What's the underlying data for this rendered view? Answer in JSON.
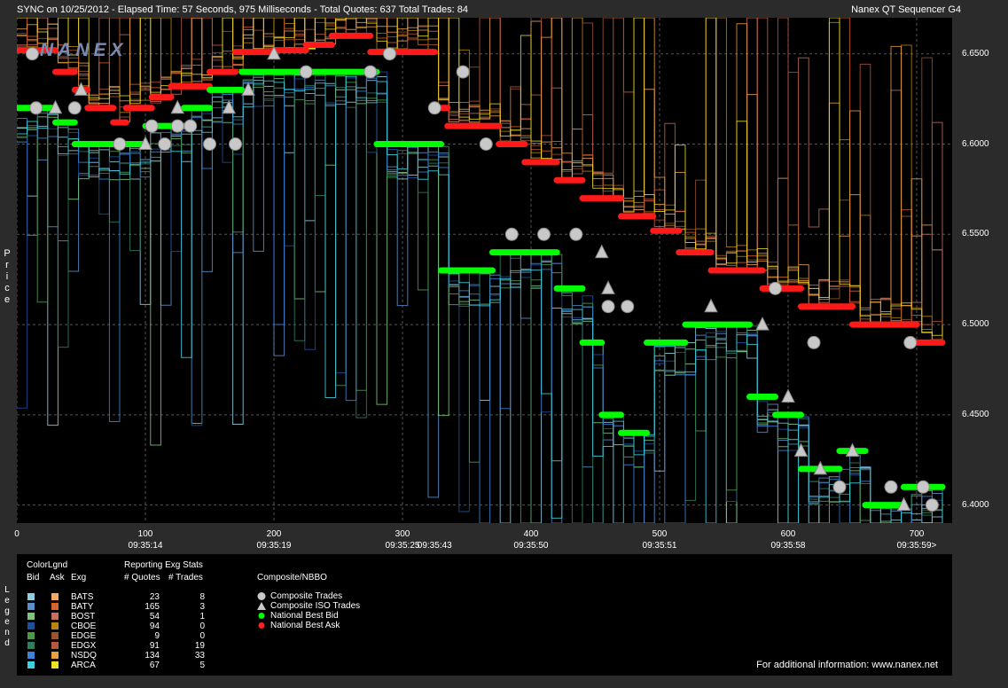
{
  "header": {
    "left": "SYNC on 10/25/2012  -  Elapsed Time: 57 Seconds, 975 Milliseconds  -  Total Quotes: 637  Total Trades: 84",
    "right": "Nanex QT Sequencer G4"
  },
  "logo": "NANEX",
  "price_axis_label": "Price",
  "legend_side_label": "Legend",
  "legend": {
    "colorlgnd": "ColorLgnd",
    "bid": "Bid",
    "ask": "Ask",
    "exg": "Exg",
    "stats_title": "Reporting Exg Stats",
    "quotes_header": "# Quotes",
    "trades_header": "# Trades",
    "composite_title": "Composite/NBBO",
    "exchanges": [
      {
        "name": "BATS",
        "quotes": "23",
        "trades": "8",
        "bid_color": "#8ecde0",
        "ask_color": "#f4a860"
      },
      {
        "name": "BATY",
        "quotes": "165",
        "trades": "3",
        "bid_color": "#5b8fc9",
        "ask_color": "#d9622a"
      },
      {
        "name": "BOST",
        "quotes": "54",
        "trades": "1",
        "bid_color": "#7fc47a",
        "ask_color": "#c87060"
      },
      {
        "name": "CBOE",
        "quotes": "94",
        "trades": "0",
        "bid_color": "#1d4f9c",
        "ask_color": "#b8860b"
      },
      {
        "name": "EDGE",
        "quotes": "9",
        "trades": "0",
        "bid_color": "#4c9a48",
        "ask_color": "#a0522d"
      },
      {
        "name": "EDGX",
        "quotes": "91",
        "trades": "19",
        "bid_color": "#2e7d5f",
        "ask_color": "#b8573a"
      },
      {
        "name": "NSDQ",
        "quotes": "134",
        "trades": "33",
        "bid_color": "#3a83d6",
        "ask_color": "#e8a040"
      },
      {
        "name": "ARCA",
        "quotes": "67",
        "trades": "5",
        "bid_color": "#3fd0e0",
        "ask_color": "#f0e020"
      }
    ],
    "composite_items": [
      {
        "label": "Composite Trades",
        "symbol": "circle",
        "color": "#c8c8c8"
      },
      {
        "label": "Composite ISO Trades",
        "symbol": "triangle",
        "color": "#c8c8c8"
      },
      {
        "label": "National Best Bid",
        "symbol": "dot",
        "color": "#00ff00"
      },
      {
        "label": "National Best Ask",
        "symbol": "dot",
        "color": "#ff2020"
      }
    ],
    "info": "For additional information: www.nanex.net"
  },
  "chart_data": {
    "type": "line",
    "ylim": [
      6.39,
      6.67
    ],
    "xlim": [
      0,
      720
    ],
    "grid": true,
    "y_ticks": [
      "6.4000",
      "6.4500",
      "6.5000",
      "6.5500",
      "6.6000",
      "6.6500"
    ],
    "x_ticks": [
      {
        "value": 0,
        "label": "0",
        "time": ""
      },
      {
        "value": 100,
        "label": "100",
        "time": "09:35:14"
      },
      {
        "value": 200,
        "label": "200",
        "time": "09:35:19"
      },
      {
        "value": 300,
        "label": "300",
        "time": "09:35:25"
      },
      {
        "value": 400,
        "label": "400",
        "time": "09:35:50"
      },
      {
        "value": 500,
        "label": "500",
        "time": "09:35:51"
      },
      {
        "value": 600,
        "label": "600",
        "time": "09:35:58"
      },
      {
        "value": 700,
        "label": "700",
        "time": "09:35:59>"
      }
    ],
    "extra_time_labels": [
      {
        "value": 325,
        "time": "09:35:43"
      }
    ],
    "series": [
      {
        "name": "National Best Ask",
        "color": "#ff1a1a",
        "x": [
          0,
          30,
          45,
          55,
          75,
          85,
          105,
          120,
          150,
          170,
          200,
          225,
          245,
          275,
          325,
          335,
          375,
          395,
          420,
          440,
          470,
          495,
          515,
          540,
          560,
          580,
          610,
          630,
          650,
          680,
          700,
          720
        ],
        "y": [
          6.652,
          6.64,
          6.63,
          6.62,
          6.612,
          6.62,
          6.626,
          6.632,
          6.64,
          6.651,
          6.652,
          6.655,
          6.66,
          6.651,
          6.62,
          6.61,
          6.6,
          6.59,
          6.58,
          6.57,
          6.56,
          6.552,
          6.54,
          6.53,
          6.53,
          6.52,
          6.51,
          6.51,
          6.5,
          6.5,
          6.49,
          6.49
        ]
      },
      {
        "name": "National Best Bid",
        "color": "#00ff00",
        "x": [
          0,
          30,
          45,
          70,
          100,
          130,
          150,
          175,
          200,
          240,
          280,
          300,
          330,
          350,
          370,
          395,
          420,
          440,
          455,
          470,
          490,
          520,
          545,
          570,
          590,
          610,
          640,
          660,
          690,
          720
        ],
        "y": [
          6.62,
          6.612,
          6.6,
          6.6,
          6.61,
          6.62,
          6.63,
          6.64,
          6.64,
          6.64,
          6.6,
          6.6,
          6.53,
          6.53,
          6.54,
          6.54,
          6.52,
          6.49,
          6.45,
          6.44,
          6.49,
          6.5,
          6.5,
          6.46,
          6.45,
          6.42,
          6.43,
          6.4,
          6.41,
          6.41
        ]
      },
      {
        "name": "Composite Trades",
        "color": "#c8c8c8",
        "symbol": "circle",
        "x": [
          12,
          15,
          45,
          80,
          105,
          115,
          125,
          135,
          150,
          170,
          225,
          275,
          290,
          325,
          347,
          365,
          385,
          410,
          435,
          460,
          475,
          590,
          620,
          640,
          680,
          695,
          705,
          712
        ],
        "y": [
          6.65,
          6.62,
          6.62,
          6.6,
          6.61,
          6.6,
          6.61,
          6.61,
          6.6,
          6.6,
          6.64,
          6.64,
          6.65,
          6.62,
          6.64,
          6.6,
          6.55,
          6.55,
          6.55,
          6.51,
          6.51,
          6.52,
          6.49,
          6.41,
          6.41,
          6.49,
          6.41,
          6.4
        ]
      },
      {
        "name": "Composite ISO Trades",
        "color": "#c8c8c8",
        "symbol": "triangle",
        "x": [
          30,
          50,
          100,
          125,
          165,
          180,
          200,
          455,
          460,
          540,
          580,
          600,
          610,
          625,
          650,
          690
        ],
        "y": [
          6.62,
          6.63,
          6.6,
          6.62,
          6.62,
          6.63,
          6.65,
          6.54,
          6.52,
          6.51,
          6.5,
          6.46,
          6.43,
          6.42,
          6.43,
          6.4
        ]
      }
    ]
  }
}
